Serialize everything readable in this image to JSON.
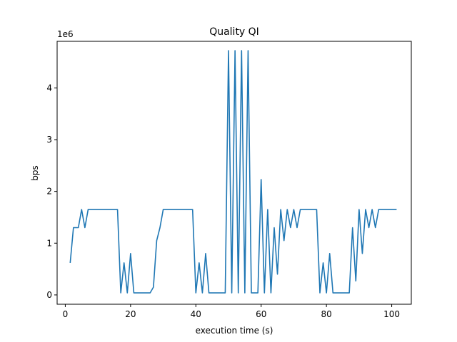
{
  "chart_data": {
    "type": "line",
    "title": "Quality QI",
    "xlabel": "execution time (s)",
    "ylabel": "bps",
    "y_scale_label": "1e6",
    "xlim": [
      -2.5,
      106
    ],
    "ylim": [
      -0.18,
      4.9
    ],
    "x_ticks": [
      0,
      20,
      40,
      60,
      80,
      100
    ],
    "y_ticks": [
      0,
      1,
      2,
      3,
      4
    ],
    "grid": false,
    "series": [
      {
        "color": "#1f77b4",
        "x": [
          1.5,
          2.5,
          3,
          4,
          5,
          6,
          7,
          8,
          16,
          17,
          18,
          19,
          20,
          21,
          25,
          26,
          27,
          28,
          29,
          30,
          31,
          39,
          40,
          41,
          42,
          43,
          44,
          45,
          49,
          50,
          51,
          52,
          53,
          54,
          55,
          56,
          57,
          58,
          59,
          60,
          61,
          62,
          63,
          64,
          65,
          66,
          67,
          68,
          69,
          70,
          71,
          72,
          73,
          77,
          78,
          79,
          80,
          81,
          82,
          83,
          87,
          88,
          89,
          90,
          91,
          92,
          93,
          94,
          95,
          96,
          97,
          101.5
        ],
        "y": [
          0.62,
          1.3,
          1.3,
          1.3,
          1.65,
          1.3,
          1.65,
          1.65,
          1.65,
          0.04,
          0.62,
          0.04,
          0.8,
          0.04,
          0.04,
          0.04,
          0.15,
          1.05,
          1.3,
          1.65,
          1.65,
          1.65,
          0.04,
          0.62,
          0.04,
          0.8,
          0.04,
          0.04,
          0.04,
          4.72,
          0.04,
          4.72,
          0.04,
          4.72,
          0.04,
          4.72,
          0.04,
          0.04,
          0.04,
          2.23,
          0.04,
          1.65,
          0.04,
          1.3,
          0.4,
          1.65,
          1.05,
          1.65,
          1.3,
          1.65,
          1.3,
          1.65,
          1.65,
          1.65,
          0.04,
          0.62,
          0.04,
          0.8,
          0.04,
          0.04,
          0.04,
          1.3,
          0.27,
          1.65,
          0.8,
          1.65,
          1.3,
          1.65,
          1.3,
          1.65,
          1.65,
          1.65
        ]
      }
    ]
  }
}
